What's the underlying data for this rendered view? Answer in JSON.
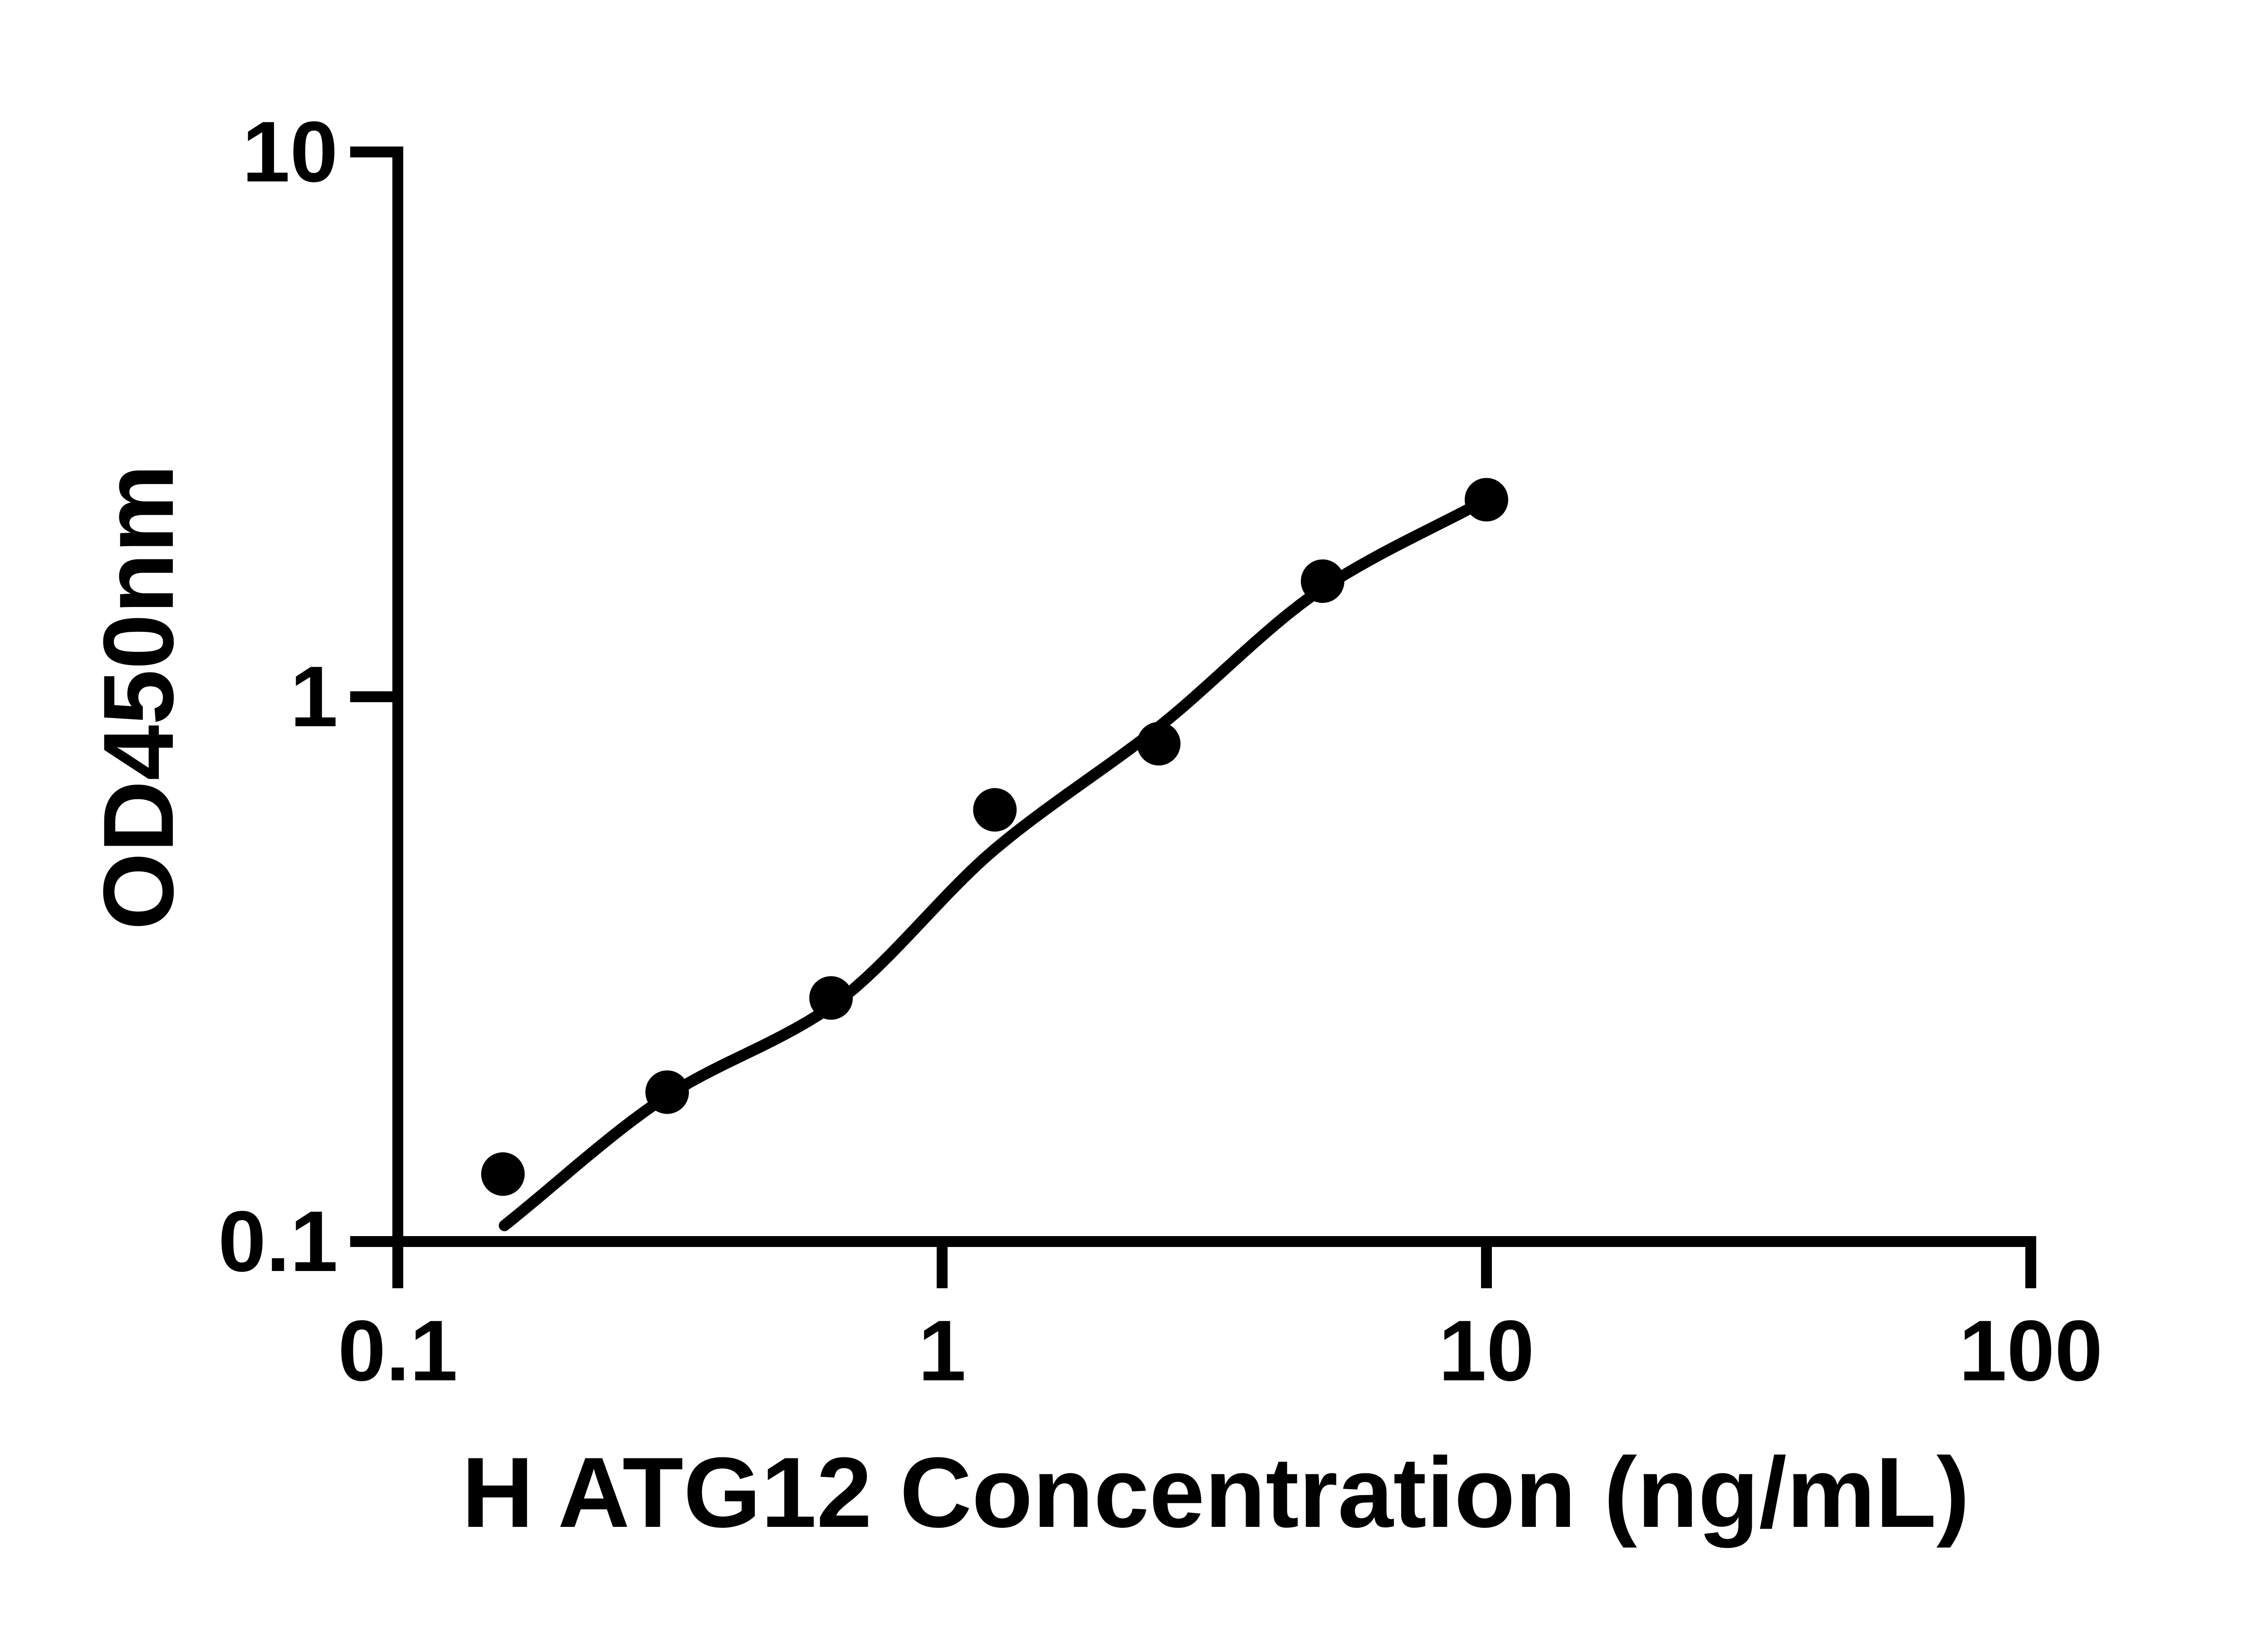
{
  "figure": {
    "background_color": "#ffffff",
    "foreground_color": "#000000"
  },
  "chart_data": {
    "type": "scatter",
    "title": "",
    "xlabel": "H ATG12 Concentration (ng/mL)",
    "ylabel": "OD450nm",
    "x_scale": "log10",
    "y_scale": "log10",
    "xlim": [
      0.1,
      100
    ],
    "ylim": [
      0.1,
      10
    ],
    "grid": false,
    "legend": false,
    "x_ticks": [
      {
        "value": 0.1,
        "label": "0.1"
      },
      {
        "value": 1,
        "label": "1"
      },
      {
        "value": 10,
        "label": "10"
      },
      {
        "value": 100,
        "label": "100"
      }
    ],
    "y_ticks": [
      {
        "value": 0.1,
        "label": "0.1"
      },
      {
        "value": 1,
        "label": "1"
      },
      {
        "value": 10,
        "label": "10"
      }
    ],
    "series": [
      {
        "name": "standard-data-points",
        "type": "scatter",
        "marker": "filled-circle",
        "color": "#000000",
        "points": [
          {
            "x": 0.156,
            "y": 0.133
          },
          {
            "x": 0.3125,
            "y": 0.188
          },
          {
            "x": 0.625,
            "y": 0.28
          },
          {
            "x": 1.25,
            "y": 0.62
          },
          {
            "x": 2.5,
            "y": 0.82
          },
          {
            "x": 5,
            "y": 1.63
          },
          {
            "x": 10,
            "y": 2.3
          }
        ]
      },
      {
        "name": "fitted-standard-curve",
        "type": "line",
        "color": "#000000",
        "points": [
          {
            "x": 0.157,
            "y": 0.107
          },
          {
            "x": 0.3125,
            "y": 0.185
          },
          {
            "x": 0.625,
            "y": 0.27
          },
          {
            "x": 1.25,
            "y": 0.525
          },
          {
            "x": 2.5,
            "y": 0.88
          },
          {
            "x": 5,
            "y": 1.58
          },
          {
            "x": 10,
            "y": 2.3
          }
        ]
      }
    ]
  }
}
